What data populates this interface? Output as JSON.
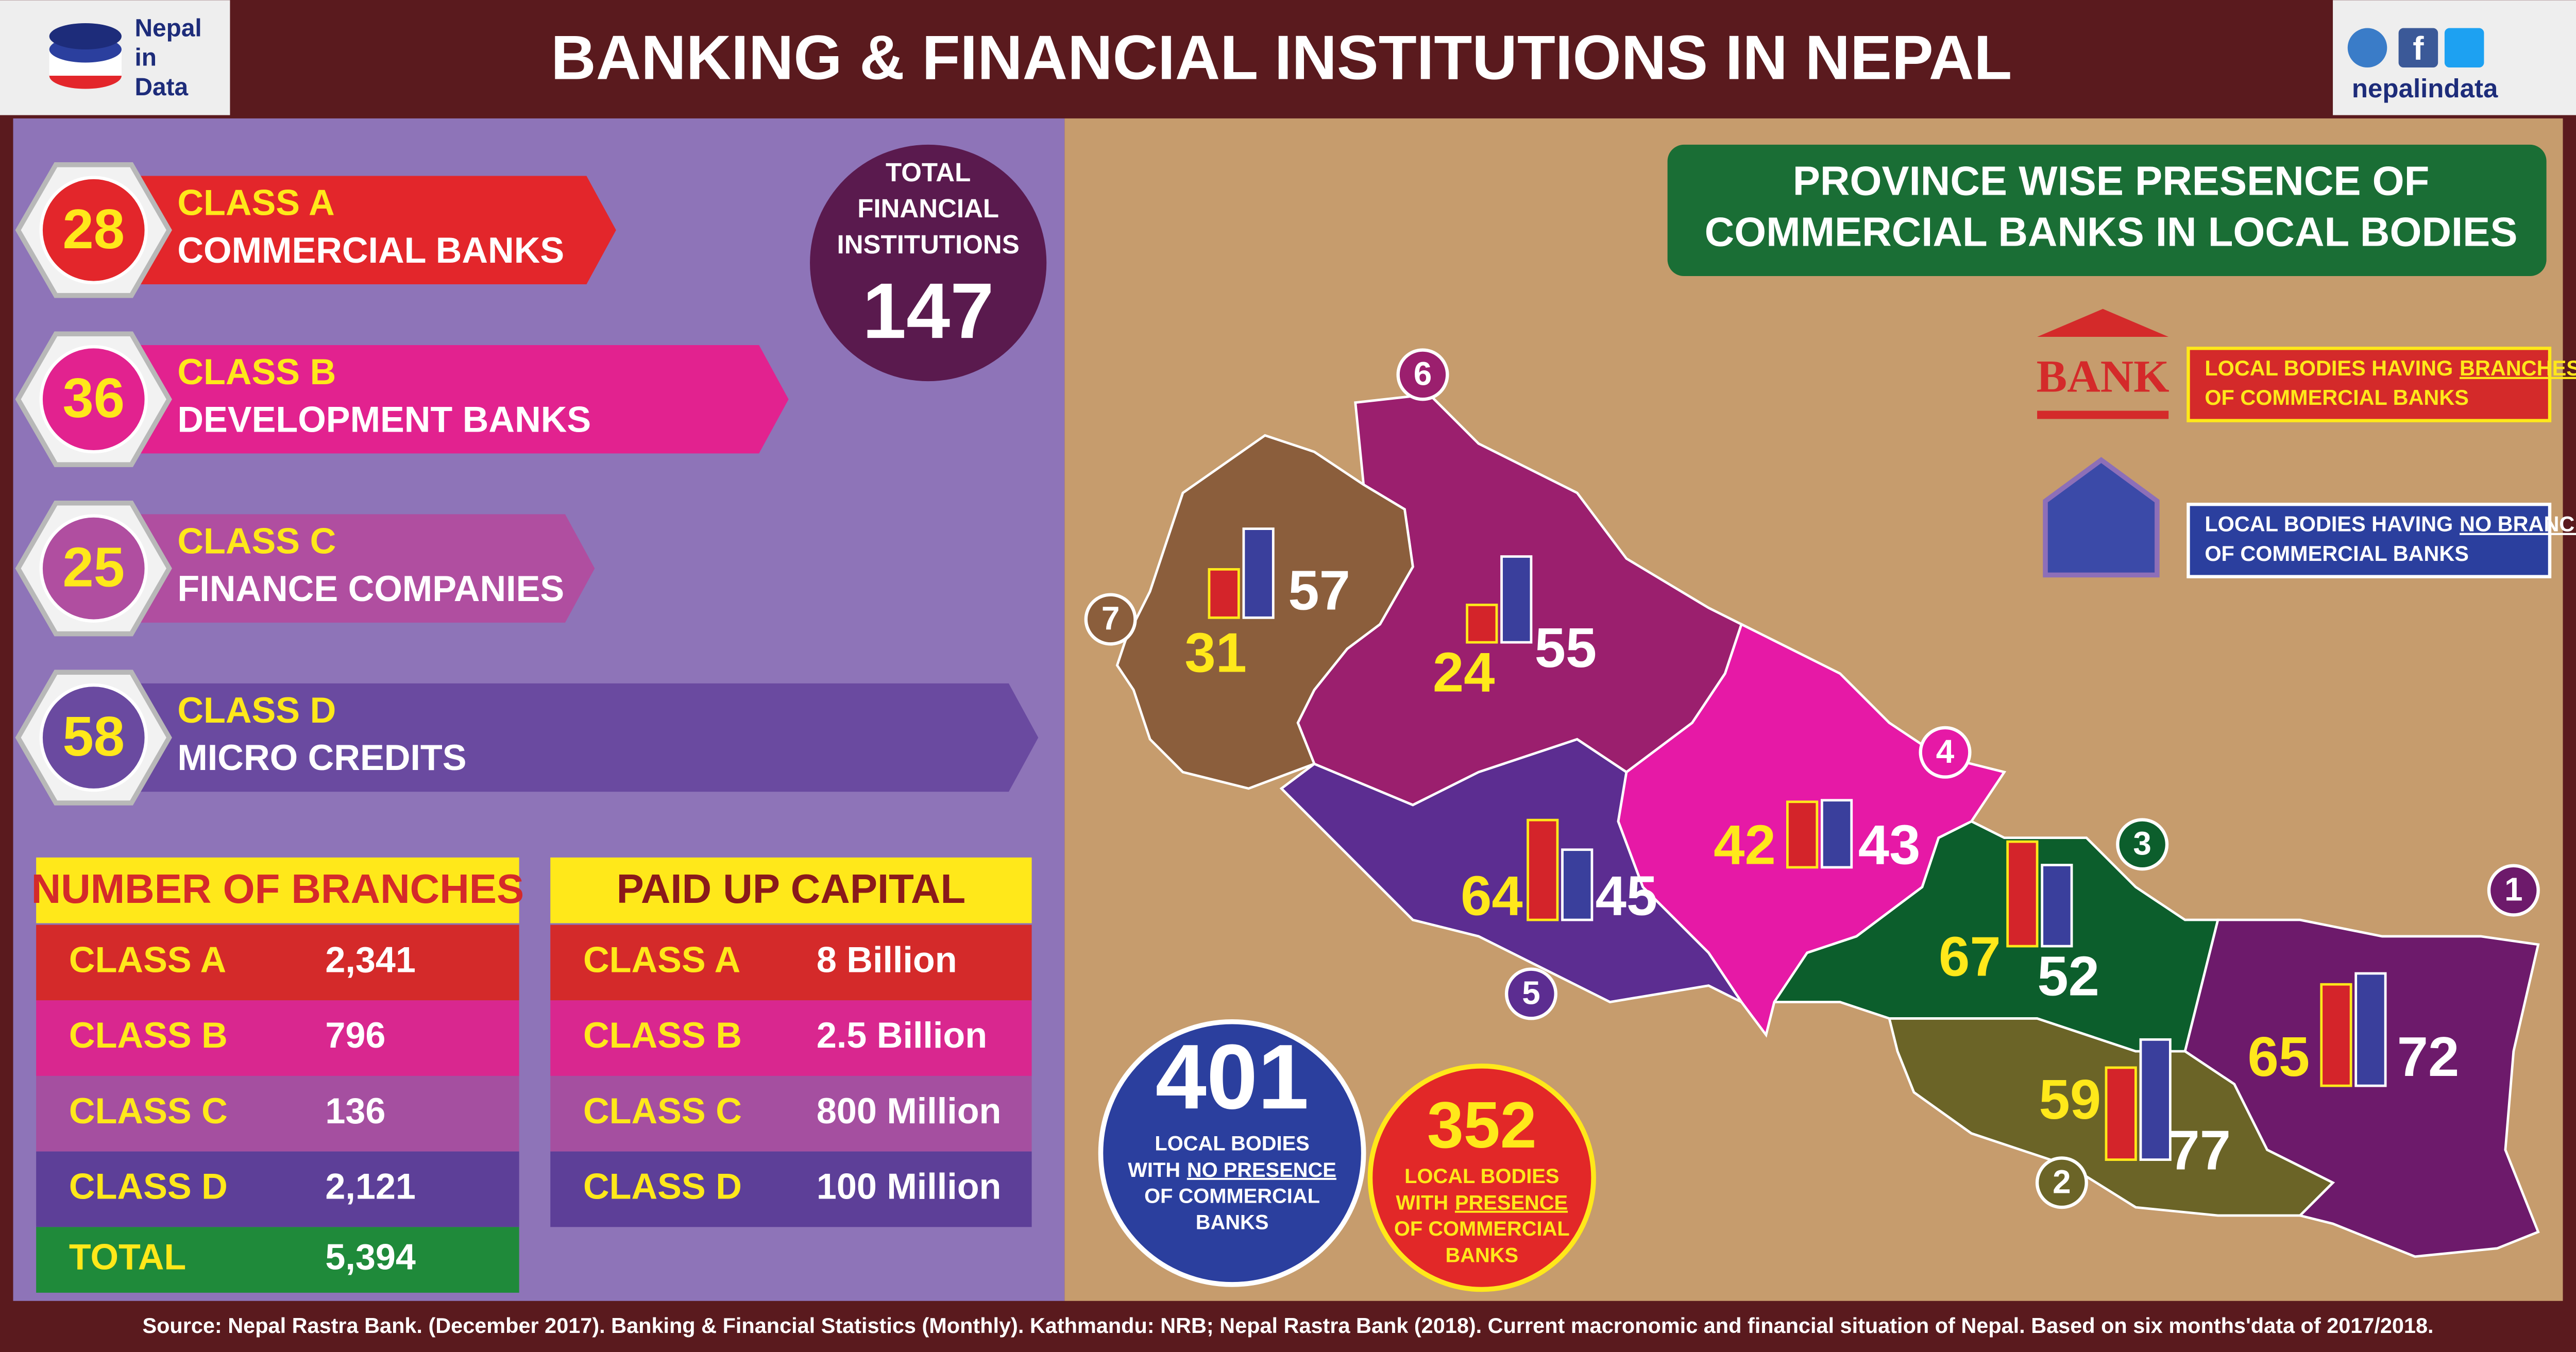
{
  "header": {
    "brand_lines": [
      "Nepal",
      "in",
      "Data"
    ],
    "title": "BANKING & FINANCIAL INSTITUTIONS IN NEPAL",
    "social": "nepalindata"
  },
  "classes": [
    {
      "count": 28,
      "class": "CLASS A",
      "name": "COMMERCIAL BANKS",
      "color": "#e3262b"
    },
    {
      "count": 36,
      "class": "CLASS B",
      "name": "DEVELOPMENT BANKS",
      "color": "#e2228f"
    },
    {
      "count": 25,
      "class": "CLASS C",
      "name": "FINANCE COMPANIES",
      "color": "#b04ea0"
    },
    {
      "count": 58,
      "class": "CLASS D",
      "name": "MICRO CREDITS",
      "color": "#6a4aa0"
    }
  ],
  "total": {
    "lines": [
      "TOTAL",
      "FINANCIAL",
      "INSTITUTIONS"
    ],
    "value": 147
  },
  "branches": {
    "title": "NUMBER OF BRANCHES",
    "rows": [
      [
        "CLASS A",
        "2,341"
      ],
      [
        "CLASS B",
        "796"
      ],
      [
        "CLASS C",
        "136"
      ],
      [
        "CLASS D",
        "2,121"
      ],
      [
        "TOTAL",
        "5,394"
      ]
    ]
  },
  "capital": {
    "title": "PAID UP CAPITAL",
    "rows": [
      [
        "CLASS A",
        "8 Billion"
      ],
      [
        "CLASS B",
        "2.5 Billion"
      ],
      [
        "CLASS C",
        "800 Million"
      ],
      [
        "CLASS D",
        "100 Million"
      ]
    ]
  },
  "map": {
    "title_lines": [
      "PROVINCE WISE PRESENCE OF",
      "COMMERCIAL BANKS IN LOCAL BODIES"
    ],
    "legend": [
      {
        "icon": "BANK",
        "before": "LOCAL BODIES HAVING",
        "emphasis": "BRANCHES",
        "after": "OF COMMERCIAL BANKS"
      },
      {
        "before": "LOCAL BODIES HAVING",
        "emphasis": "NO BRANCHES",
        "after": "OF COMMERCIAL BANKS"
      }
    ],
    "provinces": [
      {
        "number": 1,
        "with_branches": 65,
        "no_branches": 72,
        "color": "#6d1a6b"
      },
      {
        "number": 2,
        "with_branches": 59,
        "no_branches": 77,
        "color": "#6b6427"
      },
      {
        "number": 3,
        "with_branches": 67,
        "no_branches": 52,
        "color": "#0c5e2c"
      },
      {
        "number": 4,
        "with_branches": 42,
        "no_branches": 43,
        "color": "#e619a6"
      },
      {
        "number": 5,
        "with_branches": 64,
        "no_branches": 45,
        "color": "#5c2d91"
      },
      {
        "number": 6,
        "with_branches": 24,
        "no_branches": 55,
        "color": "#9b1f6e"
      },
      {
        "number": 7,
        "with_branches": 31,
        "no_branches": 57,
        "color": "#8b5e3c"
      }
    ]
  },
  "summary": [
    {
      "value": 401,
      "lines": [
        "LOCAL BODIES",
        "WITH",
        "NO PRESENCE",
        "OF COMMERCIAL",
        "BANKS"
      ]
    },
    {
      "value": 352,
      "lines": [
        "LOCAL BODIES",
        "WITH",
        "PRESENCE",
        "OF COMMERCIAL",
        "BANKS"
      ]
    }
  ],
  "source": "Source: Nepal Rastra Bank. (December 2017). Banking & Financial Statistics (Monthly). Kathmandu: NRB;  Nepal Rastra Bank (2018). Current macronomic and financial situation of Nepal. Based on six months'data of 2017/2018."
}
